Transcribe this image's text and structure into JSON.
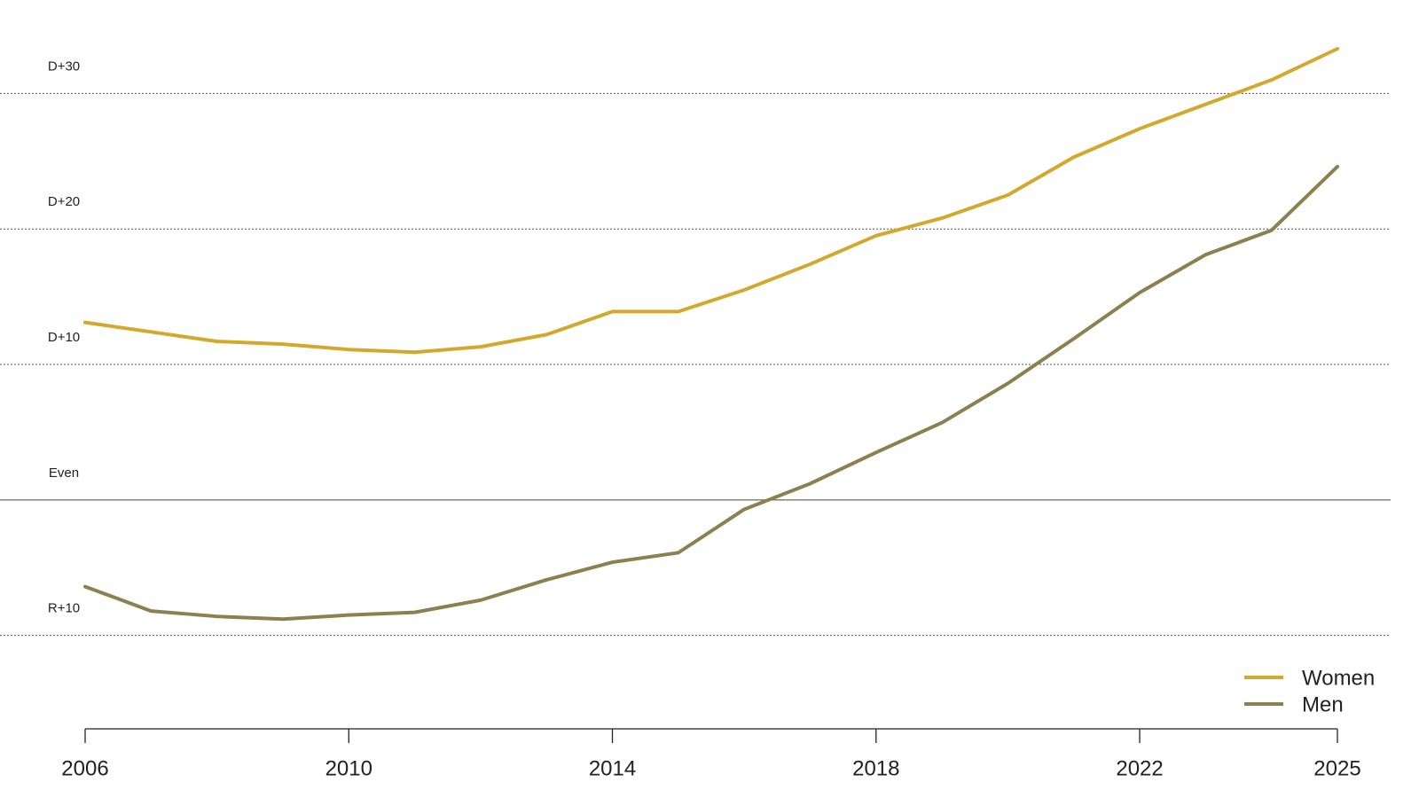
{
  "chart_data": {
    "type": "line",
    "x": [
      2006,
      2007,
      2008,
      2009,
      2010,
      2011,
      2012,
      2013,
      2014,
      2015,
      2016,
      2017,
      2018,
      2019,
      2020,
      2021,
      2022,
      2023,
      2024,
      2025
    ],
    "series": [
      {
        "name": "Women",
        "color": "#d4a82c",
        "values": [
          13.1,
          12.4,
          11.7,
          11.5,
          11.1,
          10.9,
          11.3,
          12.2,
          13.9,
          13.9,
          15.5,
          17.4,
          19.5,
          20.8,
          22.5,
          25.3,
          27.4,
          29.2,
          31.0,
          33.3
        ]
      },
      {
        "name": "Men",
        "color": "#8c8050",
        "values": [
          -6.4,
          -8.2,
          -8.6,
          -8.8,
          -8.5,
          -8.3,
          -7.4,
          -5.9,
          -4.6,
          -3.9,
          -0.7,
          1.2,
          3.5,
          5.7,
          8.6,
          11.9,
          15.3,
          18.1,
          19.9,
          24.6
        ]
      }
    ],
    "xlim": [
      2006,
      2025
    ],
    "xticks": [
      2006,
      2010,
      2014,
      2018,
      2022,
      2025
    ],
    "ylim": [
      -16.9,
      36.9
    ],
    "yticks": [
      {
        "value": -10,
        "label": "R+10"
      },
      {
        "value": 0,
        "label": "Even"
      },
      {
        "value": 10,
        "label": "D+10"
      },
      {
        "value": 20,
        "label": "D+20"
      },
      {
        "value": 30,
        "label": "D+30"
      }
    ],
    "grid": true,
    "zero_line": true,
    "legend": "bottom-right"
  }
}
